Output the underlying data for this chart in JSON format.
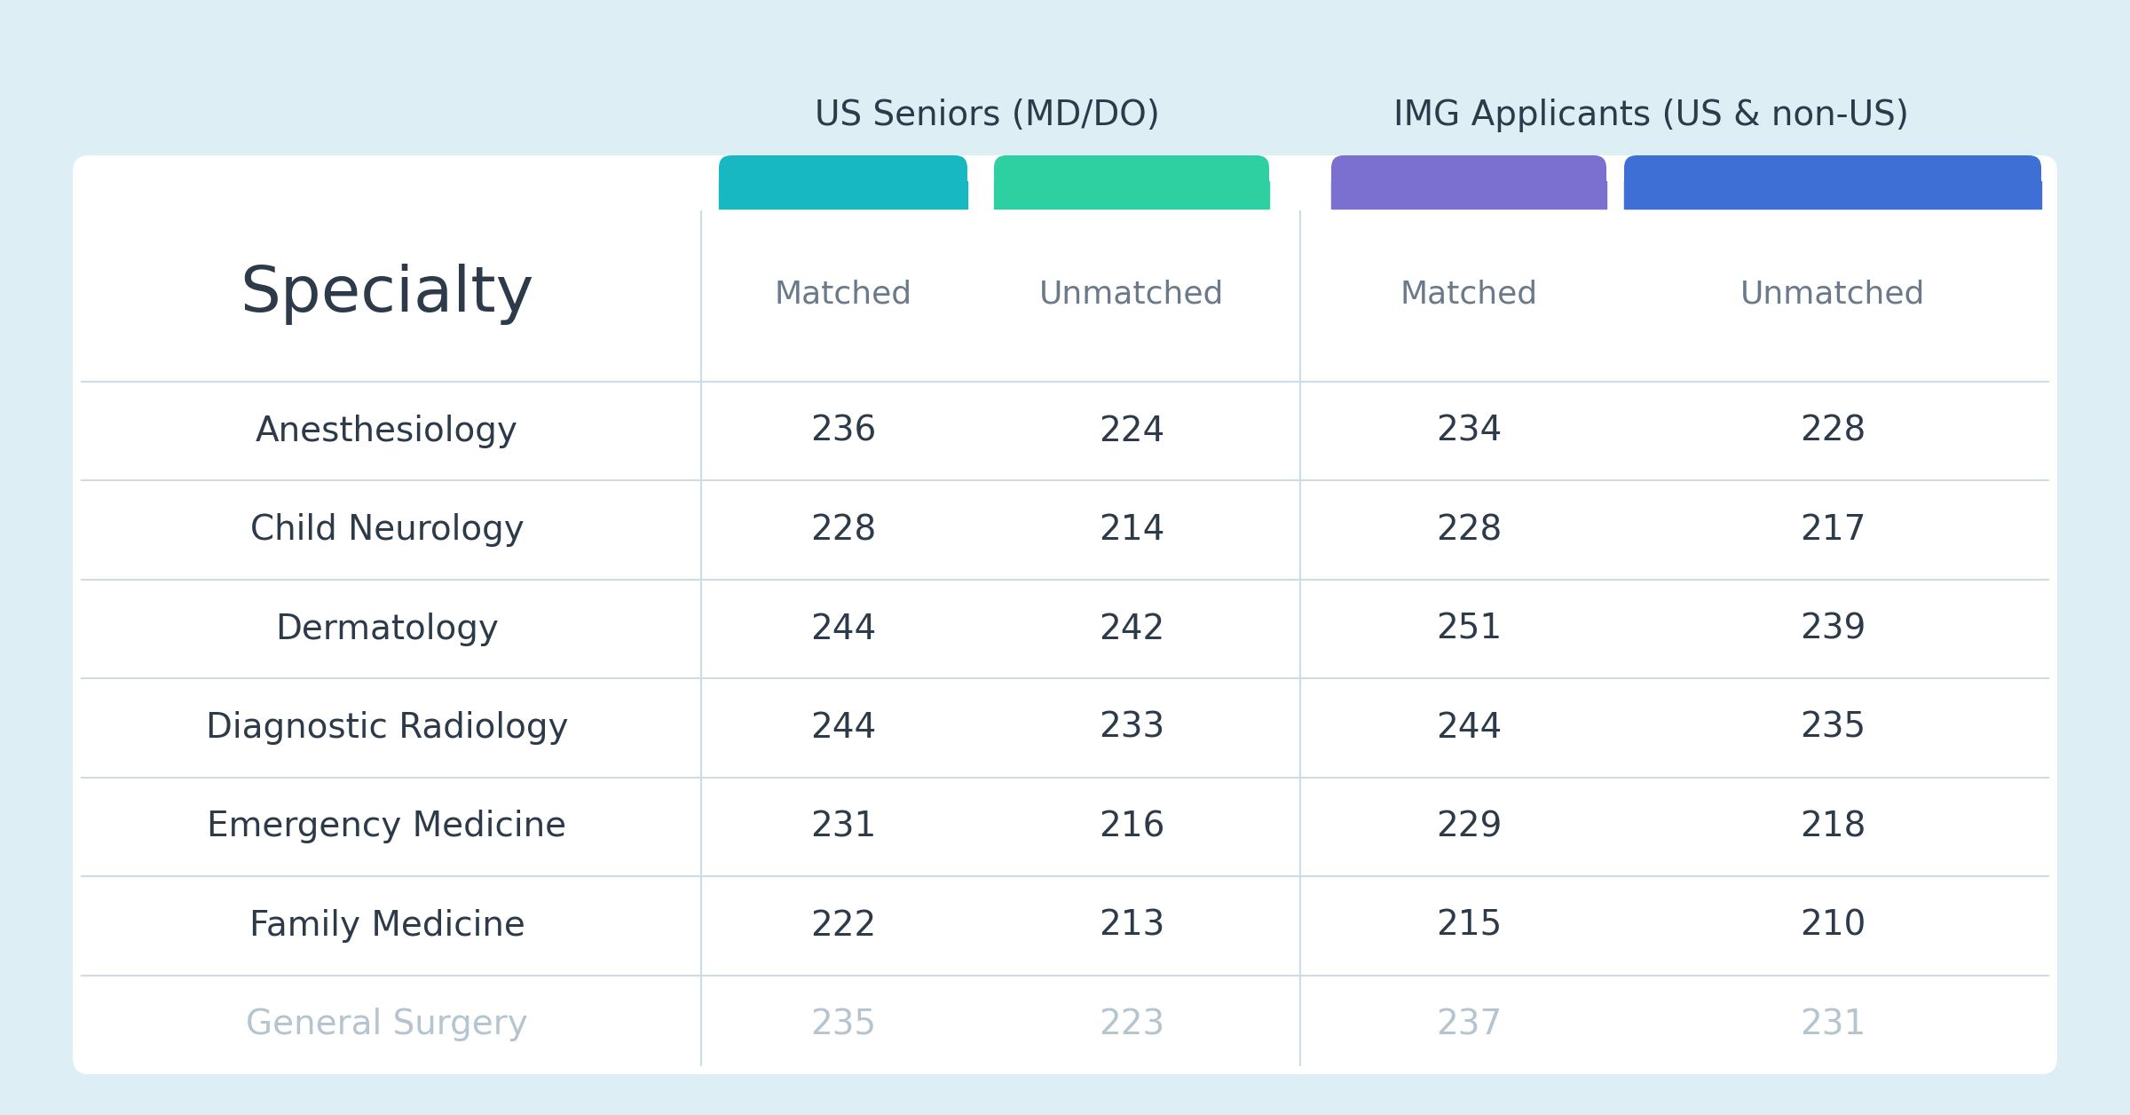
{
  "background_color": "#ddeef5",
  "table_bg": "#ffffff",
  "title_group1": "US Seniors (MD/DO)",
  "title_group2": "IMG Applicants (US & non-US)",
  "col_headers": [
    "Matched",
    "Unmatched",
    "Matched",
    "Unmatched"
  ],
  "col_colors": [
    "#17b8c2",
    "#2ecfa0",
    "#7b6fcf",
    "#3d6fd4"
  ],
  "specialty_header": "Specialty",
  "specialties": [
    "Anesthesiology",
    "Child Neurology",
    "Dermatology",
    "Diagnostic Radiology",
    "Emergency Medicine",
    "Family Medicine",
    "General Surgery"
  ],
  "specialty_colors": [
    "#2d3a4a",
    "#2d3a4a",
    "#2d3a4a",
    "#2d3a4a",
    "#2d3a4a",
    "#2d3a4a",
    "#b5c5cf"
  ],
  "data": [
    [
      236,
      224,
      234,
      228
    ],
    [
      228,
      214,
      228,
      217
    ],
    [
      244,
      242,
      251,
      239
    ],
    [
      244,
      233,
      244,
      235
    ],
    [
      231,
      216,
      229,
      218
    ],
    [
      222,
      213,
      215,
      210
    ],
    [
      235,
      223,
      237,
      231
    ]
  ],
  "data_colors": [
    [
      "#2d3a4a",
      "#2d3a4a",
      "#2d3a4a",
      "#2d3a4a"
    ],
    [
      "#2d3a4a",
      "#2d3a4a",
      "#2d3a4a",
      "#2d3a4a"
    ],
    [
      "#2d3a4a",
      "#2d3a4a",
      "#2d3a4a",
      "#2d3a4a"
    ],
    [
      "#2d3a4a",
      "#2d3a4a",
      "#2d3a4a",
      "#2d3a4a"
    ],
    [
      "#2d3a4a",
      "#2d3a4a",
      "#2d3a4a",
      "#2d3a4a"
    ],
    [
      "#2d3a4a",
      "#2d3a4a",
      "#2d3a4a",
      "#2d3a4a"
    ],
    [
      "#b5c5cf",
      "#b5c5cf",
      "#b5c5cf",
      "#b5c5cf"
    ]
  ],
  "group_label_color": "#2d3a4a",
  "divider_color": "#ccdde8",
  "col_header_color": "#6a7a8a",
  "specialty_fontsize": 52,
  "header_fontsize": 26,
  "data_fontsize": 28,
  "group_label_fontsize": 28
}
